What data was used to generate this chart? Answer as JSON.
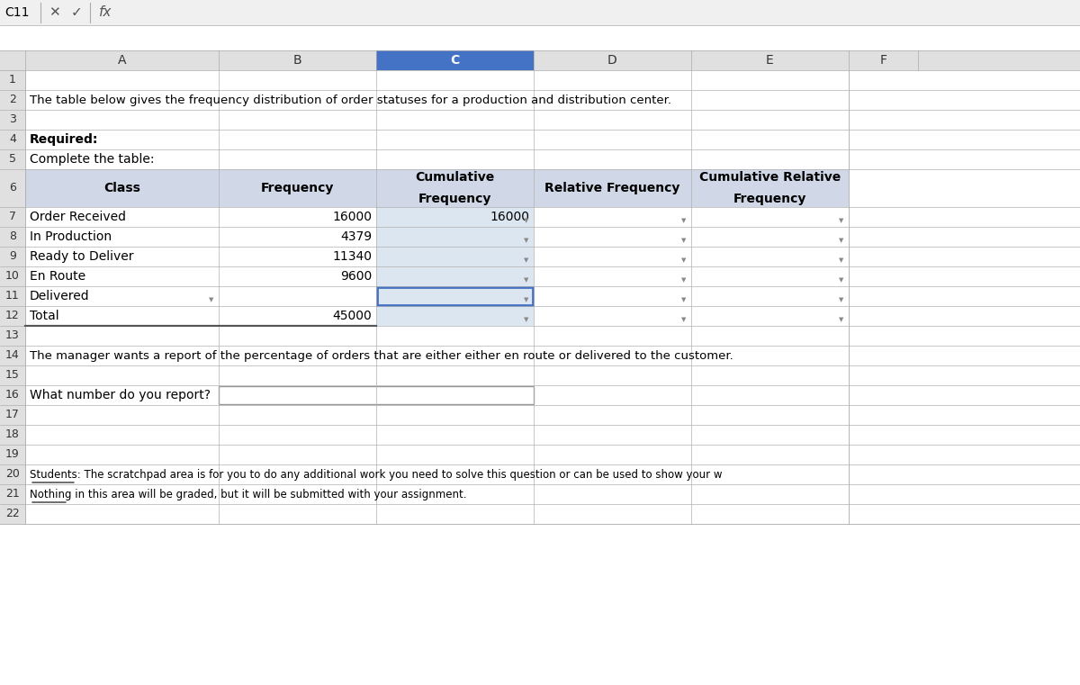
{
  "title_bar": "C11",
  "formula_bar": "fx",
  "col_headers": [
    "",
    "A",
    "B",
    "C",
    "D",
    "E",
    "F"
  ],
  "row_data": {
    "1": [
      "",
      "",
      "",
      "",
      "",
      "",
      ""
    ],
    "2": [
      "The table below gives the frequency distribution of order statuses for a production and distribution center.",
      "",
      "",
      "",
      "",
      "",
      ""
    ],
    "3": [
      "",
      "",
      "",
      "",
      "",
      "",
      ""
    ],
    "4": [
      "Required:",
      "",
      "",
      "",
      "",
      "",
      ""
    ],
    "5": [
      "Complete the table:",
      "",
      "",
      "",
      "",
      "",
      ""
    ],
    "6": [
      "",
      "",
      "Class",
      "Frequency",
      "Cumulative\nFrequency",
      "Relative Frequency",
      "Cumulative Relative\nFrequency"
    ],
    "7": [
      "",
      "Order Received",
      "",
      "16000",
      "16000",
      "",
      ""
    ],
    "8": [
      "",
      "In Production",
      "",
      "4379",
      "",
      "",
      ""
    ],
    "9": [
      "",
      "Ready to Deliver",
      "",
      "11340",
      "",
      "",
      ""
    ],
    "10": [
      "",
      "En Route",
      "",
      "9600",
      "",
      "",
      ""
    ],
    "11": [
      "",
      "Delivered",
      "",
      "",
      "",
      "",
      ""
    ],
    "12": [
      "",
      "Total",
      "",
      "45000",
      "",
      "",
      ""
    ],
    "13": [
      "",
      "",
      "",
      "",
      "",
      "",
      ""
    ],
    "14": [
      "The manager wants a report of the percentage of orders that are either either en route or delivered to the customer.",
      "",
      "",
      "",
      "",
      "",
      ""
    ],
    "15": [
      "",
      "",
      "",
      "",
      "",
      "",
      ""
    ],
    "16": [
      "What number do you report?",
      "",
      "",
      "",
      "",
      "",
      ""
    ],
    "17": [
      "",
      "",
      "",
      "",
      "",
      "",
      ""
    ],
    "18": [
      "",
      "",
      "",
      "",
      "",
      "",
      ""
    ],
    "19": [
      "",
      "",
      "",
      "",
      "",
      "",
      ""
    ],
    "20": [
      "Students: The scratchpad area is for you to do any additional work you need to solve this question or can be used to show your w",
      "",
      "",
      "",
      "",
      "",
      ""
    ],
    "21": [
      "Nothing in this area will be graded, but it will be submitted with your assignment.",
      "",
      "",
      "",
      "",
      "",
      ""
    ],
    "22": [
      "",
      "",
      "",
      "",
      "",
      "",
      ""
    ]
  },
  "bg_color": "#ffffff",
  "header_bg": "#e8e8e8",
  "col_header_bg": "#e0e0e0",
  "selected_col_bg": "#b8cce4",
  "selected_col_header_bg": "#4472c4",
  "table_header_bg": "#c0c8d8",
  "grid_color": "#b0b0b0",
  "title_bar_bg": "#f0f0f0",
  "formula_bar_bg": "#ffffff",
  "cell_bg": "#ffffff",
  "alt_row_bg": "#f5f5f5",
  "bold_rows": [
    4,
    5
  ],
  "selected_cell": [
    11,
    3
  ]
}
